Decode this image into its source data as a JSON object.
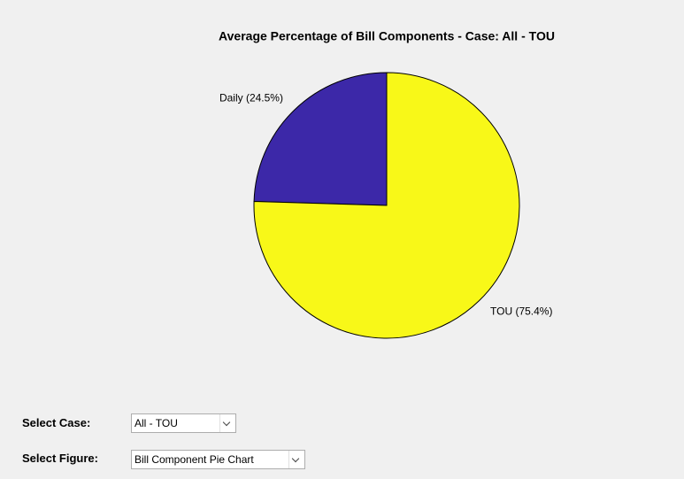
{
  "chart_data": {
    "type": "pie",
    "title": "Average Percentage of Bill Components - Case: All - TOU",
    "values": [
      24.5,
      75.4
    ],
    "value_labels": [
      "Daily (24.5%)",
      "TOU (75.4%)"
    ],
    "colors": [
      "#3c28a8",
      "#f8f818"
    ]
  },
  "controls": [
    {
      "label": "Select Case:",
      "selected": "All - TOU"
    },
    {
      "label": "Select Figure:",
      "selected": "Bill Component Pie Chart"
    }
  ]
}
